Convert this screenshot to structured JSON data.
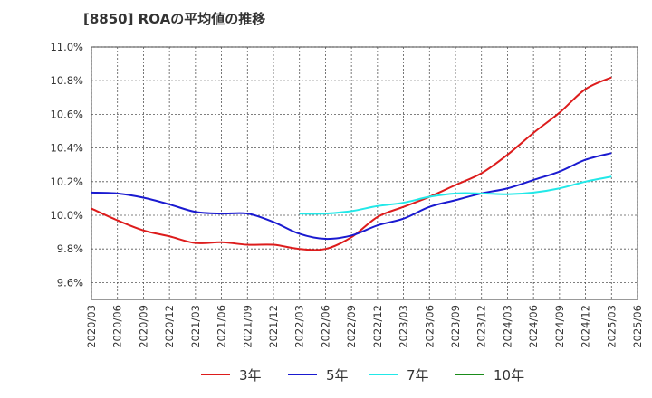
{
  "chart_data": {
    "type": "line",
    "title": "[8850]  ROAの平均値の推移",
    "xlabel": "",
    "ylabel": "",
    "ylim": [
      9.5,
      11.0
    ],
    "yticks": [
      9.6,
      9.8,
      10.0,
      10.2,
      10.4,
      10.6,
      10.8,
      11.0
    ],
    "ytick_labels": [
      "9.6%",
      "9.8%",
      "10.0%",
      "10.2%",
      "10.4%",
      "10.6%",
      "10.8%",
      "11.0%"
    ],
    "x_labels": [
      "2020/03",
      "2020/06",
      "2020/09",
      "2020/12",
      "2021/03",
      "2021/06",
      "2021/09",
      "2021/12",
      "2022/03",
      "2022/06",
      "2022/09",
      "2022/12",
      "2023/03",
      "2023/06",
      "2023/09",
      "2023/12",
      "2024/03",
      "2024/06",
      "2024/09",
      "2024/12",
      "2025/03",
      "2025/06"
    ],
    "grid": true,
    "legend_position": "bottom",
    "series": [
      {
        "name": "3年",
        "color": "#dd1c1c",
        "values": [
          10.04,
          9.97,
          9.91,
          9.875,
          9.835,
          9.84,
          9.825,
          9.825,
          9.8,
          9.8,
          9.87,
          9.99,
          10.05,
          10.11,
          10.18,
          10.25,
          10.36,
          10.49,
          10.61,
          10.75,
          10.82,
          null
        ]
      },
      {
        "name": "5年",
        "color": "#1a1ad0",
        "values": [
          10.135,
          10.13,
          10.105,
          10.065,
          10.02,
          10.01,
          10.01,
          9.96,
          9.89,
          9.86,
          9.88,
          9.94,
          9.98,
          10.05,
          10.09,
          10.13,
          10.16,
          10.21,
          10.26,
          10.33,
          10.37,
          null
        ]
      },
      {
        "name": "7年",
        "color": "#22e8e8",
        "values": [
          null,
          null,
          null,
          null,
          null,
          null,
          null,
          null,
          10.01,
          10.01,
          10.025,
          10.055,
          10.075,
          10.11,
          10.13,
          10.13,
          10.125,
          10.135,
          10.16,
          10.2,
          10.23,
          null
        ]
      },
      {
        "name": "10年",
        "color": "#1a8c1a",
        "values": [
          null,
          null,
          null,
          null,
          null,
          null,
          null,
          null,
          null,
          null,
          null,
          null,
          null,
          null,
          null,
          null,
          null,
          null,
          null,
          null,
          null,
          null
        ]
      }
    ]
  }
}
